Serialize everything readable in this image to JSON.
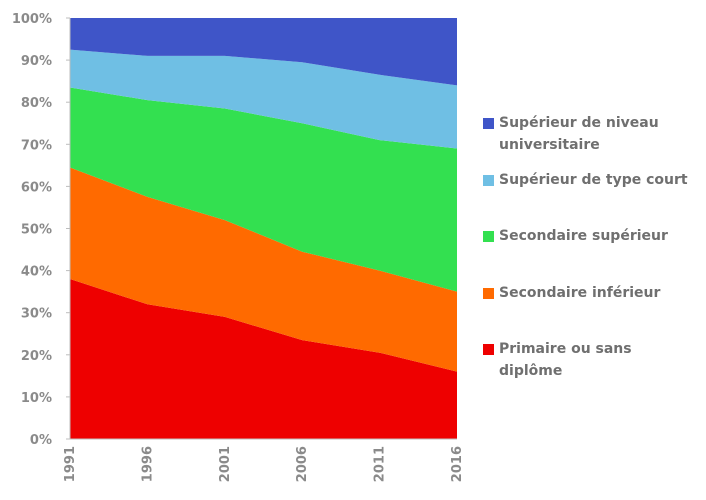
{
  "chart_data": {
    "type": "area",
    "stacked": true,
    "x": [
      "1991",
      "1996",
      "2001",
      "2006",
      "2011",
      "2016"
    ],
    "ylim": [
      0,
      100
    ],
    "yticks": [
      "0%",
      "10%",
      "20%",
      "30%",
      "40%",
      "50%",
      "60%",
      "70%",
      "80%",
      "90%",
      "100%"
    ],
    "legend_position": "right",
    "series": [
      {
        "name": "Primaire ou sans diplôme",
        "color": "#ee0000",
        "values": [
          38,
          32,
          29,
          23.5,
          20.5,
          16
        ]
      },
      {
        "name": "Secondaire inférieur",
        "color": "#ff6a00",
        "values": [
          26.5,
          25.5,
          23,
          21,
          19.5,
          19
        ]
      },
      {
        "name": "Secondaire supérieur",
        "color": "#33e050",
        "values": [
          19,
          23,
          26.5,
          30.5,
          31,
          34
        ]
      },
      {
        "name": "Supérieur de type court",
        "color": "#6fbfe4",
        "values": [
          9,
          10.5,
          12.5,
          14.5,
          15.5,
          15
        ]
      },
      {
        "name": "Supérieur de niveau universitaire",
        "color": "#3f55c8",
        "values": [
          7.5,
          9,
          9,
          10.5,
          13.5,
          16
        ]
      }
    ]
  }
}
